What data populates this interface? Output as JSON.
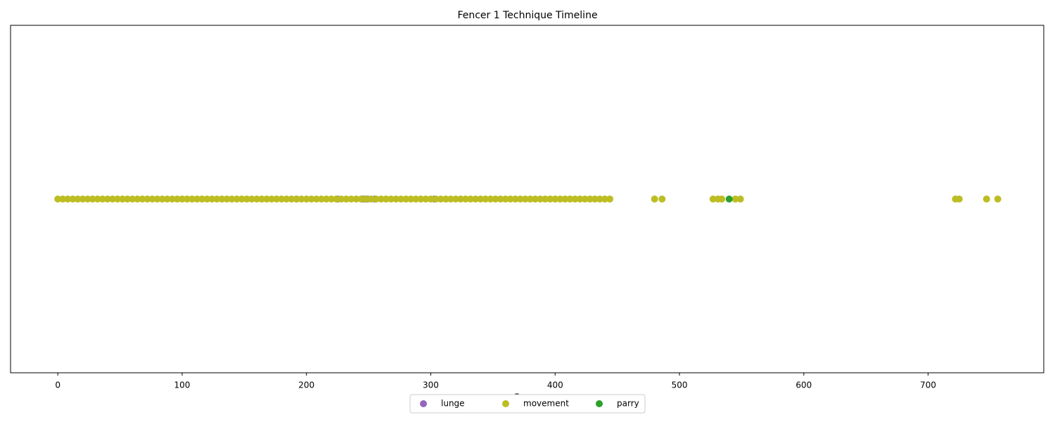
{
  "chart_data": {
    "type": "scatter",
    "title": "Fencer 1 Technique Timeline",
    "x_label": "Frame",
    "xlim": [
      -38,
      793
    ],
    "xticks": [
      0,
      100,
      200,
      300,
      400,
      500,
      600,
      700
    ],
    "ylim": [
      -0.055,
      0.055
    ],
    "legend": "lower center",
    "series": [
      {
        "name": "lunge",
        "color": "#9467bd",
        "x": [
          192,
          225,
          245,
          247,
          249,
          255,
          303
        ],
        "values": [
          0,
          0,
          0,
          0,
          0,
          0,
          0
        ]
      },
      {
        "name": "movement",
        "color": "#bcbd22",
        "x": [
          0,
          4,
          8,
          12,
          16,
          20,
          24,
          28,
          32,
          36,
          40,
          44,
          48,
          52,
          56,
          60,
          64,
          68,
          72,
          76,
          80,
          84,
          88,
          92,
          96,
          100,
          104,
          108,
          112,
          116,
          120,
          124,
          128,
          132,
          136,
          140,
          144,
          148,
          152,
          156,
          160,
          164,
          168,
          172,
          176,
          180,
          184,
          188,
          192,
          196,
          200,
          204,
          208,
          212,
          216,
          220,
          224,
          228,
          232,
          236,
          240,
          244,
          248,
          252,
          256,
          260,
          264,
          268,
          272,
          276,
          280,
          284,
          288,
          292,
          296,
          300,
          304,
          308,
          312,
          316,
          320,
          324,
          328,
          332,
          336,
          340,
          344,
          348,
          352,
          356,
          360,
          364,
          368,
          372,
          376,
          380,
          384,
          388,
          392,
          396,
          400,
          404,
          408,
          412,
          416,
          420,
          424,
          428,
          432,
          436,
          440,
          444,
          480,
          486,
          527,
          531,
          534,
          545,
          549,
          722,
          725,
          747,
          756
        ],
        "values": [
          0,
          0,
          0,
          0,
          0,
          0,
          0,
          0,
          0,
          0,
          0,
          0,
          0,
          0,
          0,
          0,
          0,
          0,
          0,
          0,
          0,
          0,
          0,
          0,
          0,
          0,
          0,
          0,
          0,
          0,
          0,
          0,
          0,
          0,
          0,
          0,
          0,
          0,
          0,
          0,
          0,
          0,
          0,
          0,
          0,
          0,
          0,
          0,
          0,
          0,
          0,
          0,
          0,
          0,
          0,
          0,
          0,
          0,
          0,
          0,
          0,
          0,
          0,
          0,
          0,
          0,
          0,
          0,
          0,
          0,
          0,
          0,
          0,
          0,
          0,
          0,
          0,
          0,
          0,
          0,
          0,
          0,
          0,
          0,
          0,
          0,
          0,
          0,
          0,
          0,
          0,
          0,
          0,
          0,
          0,
          0,
          0,
          0,
          0,
          0,
          0,
          0,
          0,
          0,
          0,
          0,
          0,
          0,
          0,
          0,
          0,
          0,
          0,
          0,
          0,
          0,
          0,
          0,
          0,
          0,
          0,
          0,
          0
        ]
      },
      {
        "name": "parry",
        "color": "#2ca02c",
        "x": [
          540
        ],
        "values": [
          0
        ]
      }
    ]
  }
}
